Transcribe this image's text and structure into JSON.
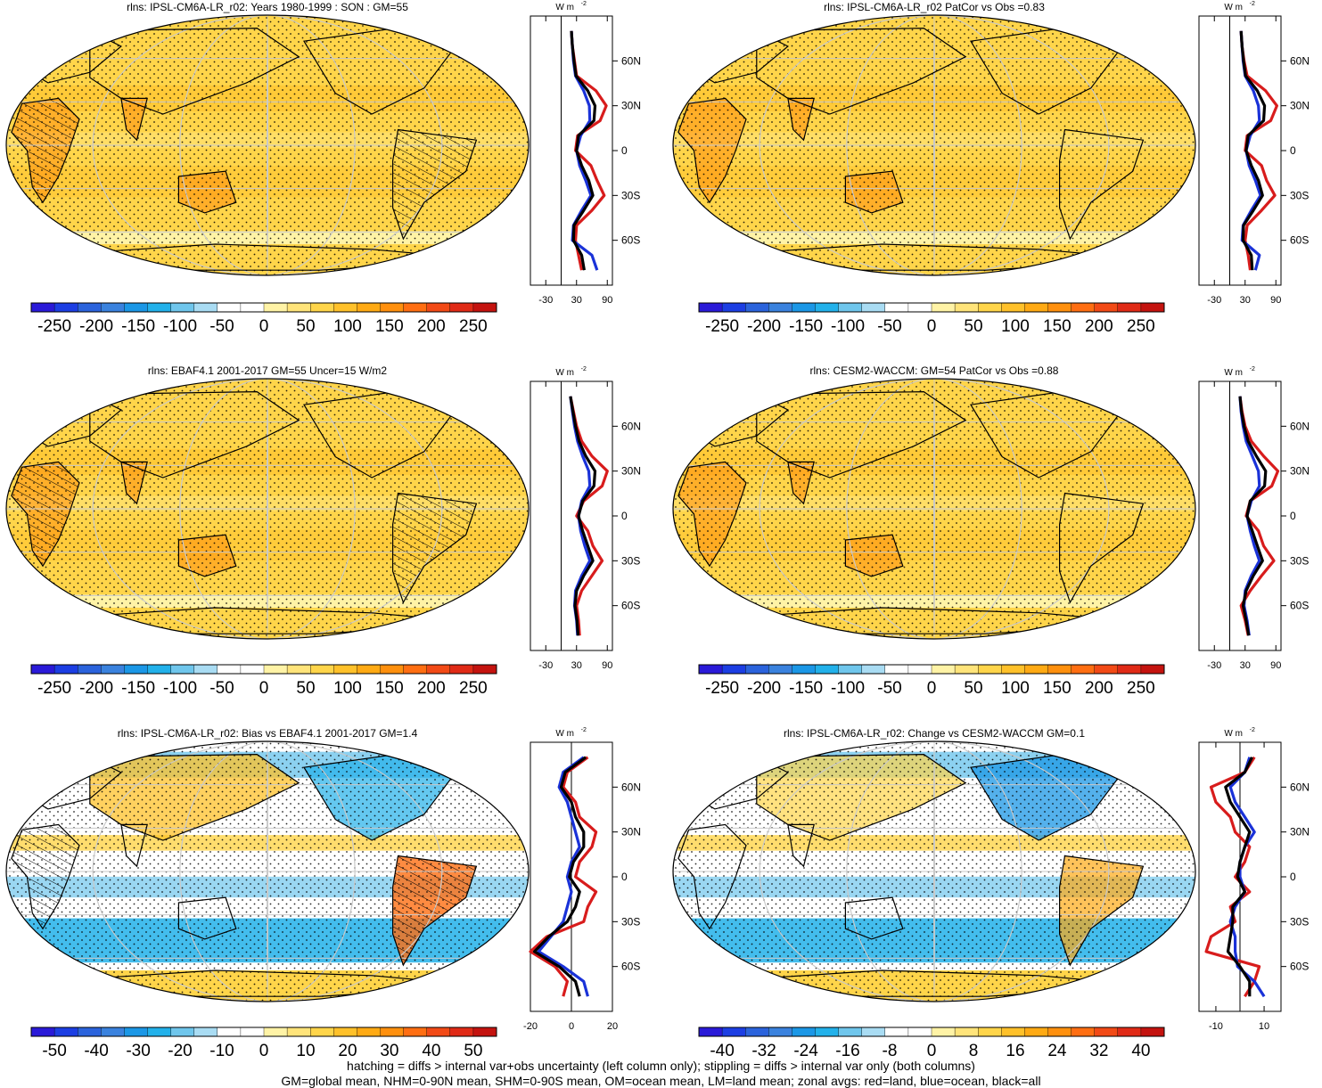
{
  "footer": {
    "line1": "hatching = diffs > internal var+obs uncertainty (left column only); stippling = diffs > internal var only (both columns)",
    "line2": "GM=global mean, NHM=0-90N mean, SHM=0-90S mean, OM=ocean mean, LM=land mean; zonal avgs: red=land, blue=ocean, black=all"
  },
  "colors": {
    "palette": [
      "#2a1ad8",
      "#1c3ee3",
      "#2b63dc",
      "#3a82de",
      "#1b97e6",
      "#22b1ea",
      "#6fc6ec",
      "#a9dcf3",
      "#ffffff",
      "#ffffff",
      "#fff3a6",
      "#ffe47a",
      "#ffd54a",
      "#ffc12a",
      "#ffaa14",
      "#ff900e",
      "#ff6e12",
      "#f24a16",
      "#e02a16",
      "#c4130f"
    ],
    "land": "#d81c1c",
    "ocean": "#1a32d8",
    "all": "#000000"
  },
  "chart_data": [
    {
      "type": "map",
      "title": "rlns: IPSL-CM6A-LR_r02: Years 1980-1999 : SON : GM=55",
      "colorbar_ticks": [
        "-250",
        "-200",
        "-150",
        "-100",
        "-50",
        "0",
        "50",
        "100",
        "150",
        "200",
        "250"
      ],
      "fill": "mean",
      "hatching": true,
      "zonal_mean": {
        "type": "line",
        "unit_label": "W m",
        "x_ticks": [
          "-30",
          "30",
          "90"
        ],
        "xlim": [
          -60,
          100
        ],
        "zero_line_at": 0,
        "lat_ticks": [
          "60N",
          "30N",
          "0",
          "30S",
          "60S"
        ],
        "lat": [
          80,
          70,
          60,
          50,
          40,
          30,
          20,
          10,
          0,
          -10,
          -20,
          -30,
          -40,
          -50,
          -60,
          -70,
          -80
        ],
        "series": [
          {
            "color": "land",
            "values": [
              20,
              22,
              26,
              30,
              68,
              88,
              76,
              32,
              28,
              58,
              70,
              84,
              60,
              30,
              28,
              34,
              40
            ]
          },
          {
            "color": "ocean",
            "values": [
              20,
              22,
              24,
              28,
              44,
              55,
              56,
              38,
              30,
              36,
              48,
              58,
              40,
              24,
              22,
              60,
              70
            ]
          },
          {
            "color": "all",
            "values": [
              20,
              22,
              25,
              29,
              52,
              66,
              64,
              34,
              30,
              40,
              54,
              62,
              44,
              25,
              24,
              40,
              45
            ]
          }
        ]
      }
    },
    {
      "type": "map",
      "title": "rlns: IPSL-CM6A-LR_r02 PatCor vs Obs =0.83",
      "colorbar_ticks": [
        "-250",
        "-200",
        "-150",
        "-100",
        "-50",
        "0",
        "50",
        "100",
        "150",
        "200",
        "250"
      ],
      "fill": "mean",
      "hatching": false,
      "zonal_mean": {
        "type": "line",
        "unit_label": "W m",
        "x_ticks": [
          "-30",
          "30",
          "90"
        ],
        "xlim": [
          -60,
          100
        ],
        "zero_line_at": 0,
        "lat_ticks": [
          "60N",
          "30N",
          "0",
          "30S",
          "60S"
        ],
        "lat": [
          80,
          70,
          60,
          50,
          40,
          30,
          20,
          10,
          0,
          -10,
          -20,
          -30,
          -40,
          -50,
          -60,
          -70,
          -80
        ],
        "series": [
          {
            "color": "land",
            "values": [
              22,
              24,
              28,
              34,
              70,
              92,
              80,
              34,
              30,
              62,
              72,
              88,
              62,
              34,
              30,
              36,
              40
            ]
          },
          {
            "color": "ocean",
            "values": [
              22,
              24,
              26,
              30,
              46,
              56,
              58,
              40,
              32,
              38,
              50,
              60,
              42,
              26,
              24,
              58,
              50
            ]
          },
          {
            "color": "all",
            "values": [
              22,
              24,
              27,
              31,
              54,
              68,
              66,
              36,
              32,
              42,
              56,
              64,
              46,
              27,
              26,
              42,
              44
            ]
          }
        ]
      }
    },
    {
      "type": "map",
      "title": "rlns: EBAF4.1 2001-2017 GM=55 Uncer=15 W/m2",
      "colorbar_ticks": [
        "-250",
        "-200",
        "-150",
        "-100",
        "-50",
        "0",
        "50",
        "100",
        "150",
        "200",
        "250"
      ],
      "fill": "mean",
      "hatching": true,
      "zonal_mean": {
        "type": "line",
        "unit_label": "W m",
        "x_ticks": [
          "-30",
          "30",
          "90"
        ],
        "xlim": [
          -60,
          100
        ],
        "zero_line_at": 0,
        "lat_ticks": [
          "60N",
          "30N",
          "0",
          "30S",
          "60S"
        ],
        "lat": [
          80,
          70,
          60,
          50,
          40,
          30,
          20,
          10,
          0,
          -10,
          -20,
          -30,
          -40,
          -50,
          -60,
          -70,
          -80
        ],
        "series": [
          {
            "color": "land",
            "values": [
              18,
              24,
              30,
              40,
              60,
              90,
              80,
              44,
              30,
              52,
              62,
              80,
              60,
              40,
              30,
              34,
              36
            ]
          },
          {
            "color": "ocean",
            "values": [
              18,
              22,
              26,
              32,
              42,
              54,
              56,
              40,
              34,
              38,
              46,
              56,
              40,
              28,
              26,
              30,
              32
            ]
          },
          {
            "color": "all",
            "values": [
              18,
              23,
              28,
              35,
              48,
              66,
              64,
              42,
              34,
              42,
              52,
              62,
              44,
              30,
              27,
              31,
              33
            ]
          }
        ]
      }
    },
    {
      "type": "map",
      "title": "rlns: CESM2-WACCM: GM=54 PatCor vs Obs =0.88",
      "colorbar_ticks": [
        "-250",
        "-200",
        "-150",
        "-100",
        "-50",
        "0",
        "50",
        "100",
        "150",
        "200",
        "250"
      ],
      "fill": "mean",
      "hatching": false,
      "zonal_mean": {
        "type": "line",
        "unit_label": "W m",
        "x_ticks": [
          "-30",
          "30",
          "90"
        ],
        "xlim": [
          -60,
          100
        ],
        "zero_line_at": 0,
        "lat_ticks": [
          "60N",
          "30N",
          "0",
          "30S",
          "60S"
        ],
        "lat": [
          80,
          70,
          60,
          50,
          40,
          30,
          20,
          10,
          0,
          -10,
          -20,
          -30,
          -40,
          -50,
          -60,
          -70,
          -80
        ],
        "series": [
          {
            "color": "land",
            "values": [
              20,
              24,
              30,
              42,
              66,
              94,
              82,
              40,
              32,
              56,
              66,
              86,
              62,
              40,
              22,
              30,
              36
            ]
          },
          {
            "color": "ocean",
            "values": [
              20,
              22,
              26,
              32,
              44,
              56,
              58,
              42,
              34,
              40,
              48,
              58,
              42,
              30,
              28,
              34,
              38
            ]
          },
          {
            "color": "all",
            "values": [
              20,
              23,
              28,
              36,
              52,
              70,
              68,
              40,
              34,
              44,
              54,
              64,
              46,
              32,
              26,
              32,
              37
            ]
          }
        ]
      }
    },
    {
      "type": "map",
      "title": "rlns: IPSL-CM6A-LR_r02: Bias vs EBAF4.1 2001-2017  GM=1.4",
      "colorbar_ticks": [
        "-50",
        "-40",
        "-30",
        "-20",
        "-10",
        "0",
        "10",
        "20",
        "30",
        "40",
        "50"
      ],
      "fill": "bias",
      "hatching": true,
      "zonal_mean": {
        "type": "line",
        "unit_label": "W m",
        "x_ticks": [
          "-20",
          "0",
          "20"
        ],
        "xlim": [
          -20,
          20
        ],
        "zero_line_at": 0,
        "lat_ticks": [
          "60N",
          "30N",
          "0",
          "30S",
          "60S"
        ],
        "lat": [
          80,
          70,
          60,
          50,
          40,
          30,
          20,
          10,
          0,
          -10,
          -20,
          -30,
          -40,
          -50,
          -60,
          -70,
          -80
        ],
        "series": [
          {
            "color": "land",
            "values": [
              8,
              -2,
              -4,
              2,
              4,
              12,
              10,
              4,
              2,
              12,
              8,
              6,
              -12,
              -20,
              -8,
              -2,
              -4
            ]
          },
          {
            "color": "ocean",
            "values": [
              6,
              -4,
              -6,
              -2,
              0,
              2,
              4,
              0,
              -2,
              0,
              -2,
              -4,
              -10,
              -16,
              -4,
              6,
              8
            ]
          },
          {
            "color": "all",
            "values": [
              7,
              -3,
              -5,
              0,
              2,
              6,
              6,
              1,
              -1,
              4,
              2,
              -2,
              -11,
              -18,
              -6,
              2,
              4
            ]
          }
        ]
      }
    },
    {
      "type": "map",
      "title": "rlns: IPSL-CM6A-LR_r02: Change vs CESM2-WACCM GM=0.1",
      "colorbar_ticks": [
        "-40",
        "-32",
        "-24",
        "-16",
        "-8",
        "0",
        "8",
        "16",
        "24",
        "32",
        "40"
      ],
      "fill": "change",
      "hatching": false,
      "zonal_mean": {
        "type": "line",
        "unit_label": "W m",
        "x_ticks": [
          "-10",
          "10"
        ],
        "xlim": [
          -17,
          17
        ],
        "zero_line_at": 0,
        "lat_ticks": [
          "60N",
          "30N",
          "0",
          "30S",
          "60S"
        ],
        "lat": [
          80,
          70,
          60,
          50,
          40,
          30,
          20,
          10,
          0,
          -10,
          -20,
          -30,
          -40,
          -50,
          -60,
          -70,
          -80
        ],
        "series": [
          {
            "color": "land",
            "values": [
              6,
              2,
              -12,
              -10,
              -4,
              -2,
              4,
              2,
              -2,
              4,
              -4,
              -2,
              -12,
              -14,
              8,
              6,
              2
            ]
          },
          {
            "color": "ocean",
            "values": [
              4,
              2,
              -4,
              -2,
              2,
              6,
              2,
              0,
              0,
              2,
              -2,
              -4,
              -2,
              -2,
              -1,
              6,
              10
            ]
          },
          {
            "color": "all",
            "values": [
              5,
              2,
              -6,
              -4,
              0,
              4,
              2,
              0,
              -1,
              2,
              -3,
              -3,
              -4,
              -5,
              0,
              4,
              4
            ]
          }
        ]
      }
    }
  ]
}
